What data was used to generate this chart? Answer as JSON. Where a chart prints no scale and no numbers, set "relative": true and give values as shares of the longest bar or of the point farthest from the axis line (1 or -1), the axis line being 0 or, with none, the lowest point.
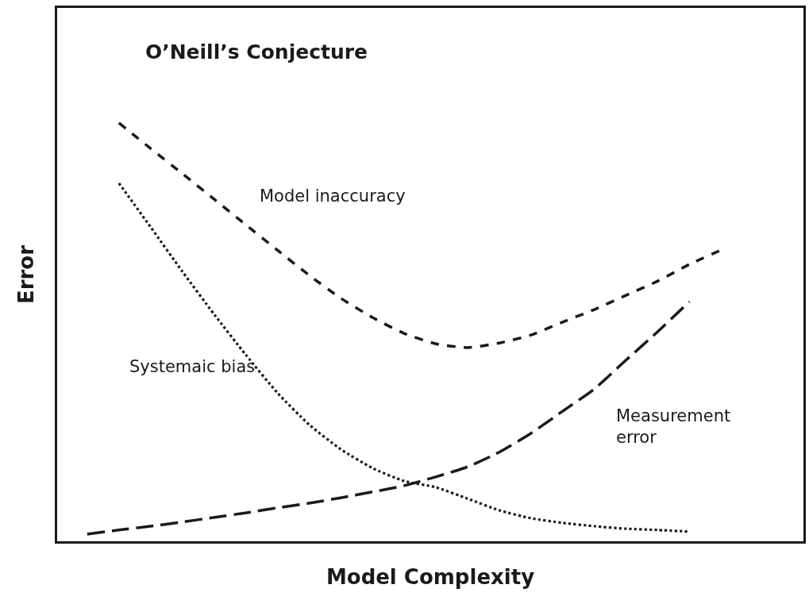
{
  "chart_data": {
    "type": "line",
    "title": "O’Neill’s Conjecture",
    "xlabel": "Model Complexity",
    "ylabel": "Error",
    "relative": true,
    "tick_labels": false,
    "legend": false,
    "marker": "none",
    "categories": [
      null,
      null,
      null,
      null,
      null,
      null,
      null,
      null,
      null,
      null,
      null,
      null,
      null,
      null,
      null,
      null,
      null,
      null,
      null,
      null,
      null
    ],
    "series": [
      {
        "name": "Model inaccuracy",
        "color": "#1a1a1a",
        "line_style": "dashed",
        "values": [
          null,
          1.0,
          0.939,
          0.879,
          0.818,
          0.757,
          0.696,
          0.636,
          0.581,
          0.535,
          0.497,
          0.472,
          0.463,
          0.474,
          0.493,
          0.524,
          0.554,
          0.588,
          0.622,
          0.662,
          0.696
        ]
      },
      {
        "name": "Systemaic bias",
        "color": "#1a1a1a",
        "line_style": "dotted",
        "values": [
          null,
          0.856,
          0.751,
          0.645,
          0.543,
          0.446,
          0.355,
          0.279,
          0.22,
          0.175,
          0.144,
          0.129,
          0.102,
          0.074,
          0.055,
          0.044,
          0.036,
          0.03,
          0.027,
          0.023,
          null
        ]
      },
      {
        "name": "Measurement error",
        "color": "#1a1a1a",
        "line_style": "dashed",
        "values": [
          0.017,
          0.027,
          0.036,
          0.046,
          0.057,
          0.068,
          0.08,
          0.091,
          0.104,
          0.118,
          0.133,
          0.154,
          0.178,
          0.213,
          0.258,
          0.311,
          0.364,
          0.433,
          0.501,
          0.573,
          null
        ]
      }
    ]
  }
}
